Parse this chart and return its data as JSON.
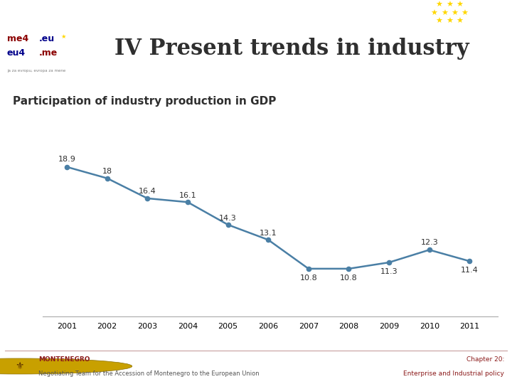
{
  "title_slide": "IV Present trends in industry",
  "subtitle": "Participation of industry production in GDP",
  "header_text": "Chapter 20: Enterprise and Industrial policy",
  "header_bg": "#6B1520",
  "header_text_color": "#FFFFFF",
  "years": [
    2001,
    2002,
    2003,
    2004,
    2005,
    2006,
    2007,
    2008,
    2009,
    2010,
    2011
  ],
  "values": [
    18.9,
    18.0,
    16.4,
    16.1,
    14.3,
    13.1,
    10.8,
    10.8,
    11.3,
    12.3,
    11.4
  ],
  "line_color": "#4A7FA5",
  "marker_color": "#4A7FA5",
  "bg_color": "#FFFFFF",
  "footer_bg": "#F0D8D8",
  "title_fontsize": 22,
  "subtitle_fontsize": 11,
  "label_fontsize": 8,
  "axis_label_fontsize": 8,
  "ylim": [
    7,
    22
  ],
  "footer_left_bold": "MONTENEGRO",
  "footer_left_normal": "Negotiating Team for the Accession of Montenegro to the European Union",
  "footer_right_line1": "Chapter 20:",
  "footer_right_line2": "Enterprise and Industrial policy",
  "star_color": "#FFD700",
  "logo_red": "#8B0000",
  "logo_blue": "#00008B",
  "logo_yellow": "#FFD700",
  "footer_text_color": "#8B1A1A",
  "label_offsets_y": [
    0.5,
    0.4,
    0.4,
    0.4,
    0.4,
    0.4,
    -0.7,
    -0.7,
    -0.7,
    0.5,
    -0.7
  ]
}
